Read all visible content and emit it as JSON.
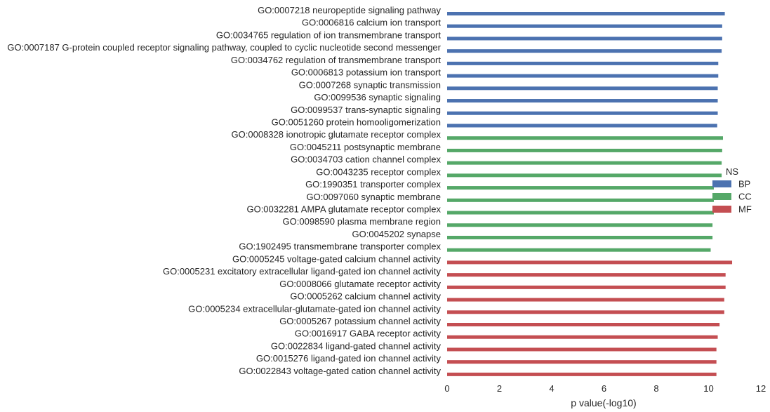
{
  "chart_data": {
    "type": "bar",
    "orientation": "horizontal",
    "xlabel": "p value(-log10)",
    "ylabel": "",
    "xlim": [
      0,
      12
    ],
    "xticks": [
      "0",
      "2",
      "4",
      "6",
      "8",
      "10",
      "12"
    ],
    "grid": false,
    "legend": {
      "title": "NS",
      "placement": "right",
      "entries": [
        {
          "name": "BP",
          "color": "#4c72b0"
        },
        {
          "name": "CC",
          "color": "#55a868"
        },
        {
          "name": "MF",
          "color": "#c44e52"
        }
      ]
    },
    "categories": [
      {
        "label": "GO:0007218 neuropeptide signaling pathway",
        "value": 10.62,
        "group": "BP"
      },
      {
        "label": "GO:0006816 calcium ion transport",
        "value": 10.52,
        "group": "BP"
      },
      {
        "label": "GO:0034765 regulation of ion transmembrane transport",
        "value": 10.52,
        "group": "BP"
      },
      {
        "label": "GO:0007187 G-protein coupled receptor signaling pathway, coupled to cyclic nucleotide second messenger",
        "value": 10.5,
        "group": "BP"
      },
      {
        "label": "GO:0034762 regulation of transmembrane transport",
        "value": 10.37,
        "group": "BP"
      },
      {
        "label": "GO:0006813 potassium ion transport",
        "value": 10.37,
        "group": "BP"
      },
      {
        "label": "GO:0007268 synaptic transmission",
        "value": 10.35,
        "group": "BP"
      },
      {
        "label": "GO:0099536 synaptic signaling",
        "value": 10.35,
        "group": "BP"
      },
      {
        "label": "GO:0099537 trans-synaptic signaling",
        "value": 10.35,
        "group": "BP"
      },
      {
        "label": "GO:0051260 protein homooligomerization",
        "value": 10.33,
        "group": "BP"
      },
      {
        "label": "GO:0008328 ionotropic glutamate receptor complex",
        "value": 10.55,
        "group": "CC"
      },
      {
        "label": "GO:0045211 postsynaptic membrane",
        "value": 10.52,
        "group": "CC"
      },
      {
        "label": "GO:0034703 cation channel complex",
        "value": 10.5,
        "group": "CC"
      },
      {
        "label": "GO:0043235 receptor complex",
        "value": 10.5,
        "group": "CC"
      },
      {
        "label": "GO:1990351 transporter complex",
        "value": 10.2,
        "group": "CC"
      },
      {
        "label": "GO:0097060 synaptic membrane",
        "value": 10.2,
        "group": "CC"
      },
      {
        "label": "GO:0032281 AMPA glutamate receptor complex",
        "value": 10.2,
        "group": "CC"
      },
      {
        "label": "GO:0098590 plasma membrane region",
        "value": 10.15,
        "group": "CC"
      },
      {
        "label": "GO:0045202 synapse",
        "value": 10.15,
        "group": "CC"
      },
      {
        "label": "GO:1902495 transmembrane transporter complex",
        "value": 10.08,
        "group": "CC"
      },
      {
        "label": "GO:0005245 voltage-gated calcium channel activity",
        "value": 10.9,
        "group": "MF"
      },
      {
        "label": "GO:0005231 excitatory extracellular ligand-gated ion channel activity",
        "value": 10.65,
        "group": "MF"
      },
      {
        "label": "GO:0008066 glutamate receptor activity",
        "value": 10.65,
        "group": "MF"
      },
      {
        "label": "GO:0005262 calcium channel activity",
        "value": 10.6,
        "group": "MF"
      },
      {
        "label": "GO:0005234 extracellular-glutamate-gated ion channel activity",
        "value": 10.6,
        "group": "MF"
      },
      {
        "label": "GO:0005267 potassium channel activity",
        "value": 10.42,
        "group": "MF"
      },
      {
        "label": "GO:0016917 GABA receptor activity",
        "value": 10.35,
        "group": "MF"
      },
      {
        "label": "GO:0022834 ligand-gated channel activity",
        "value": 10.3,
        "group": "MF"
      },
      {
        "label": "GO:0015276 ligand-gated ion channel activity",
        "value": 10.3,
        "group": "MF"
      },
      {
        "label": "GO:0022843 voltage-gated cation channel activity",
        "value": 10.3,
        "group": "MF"
      }
    ]
  }
}
